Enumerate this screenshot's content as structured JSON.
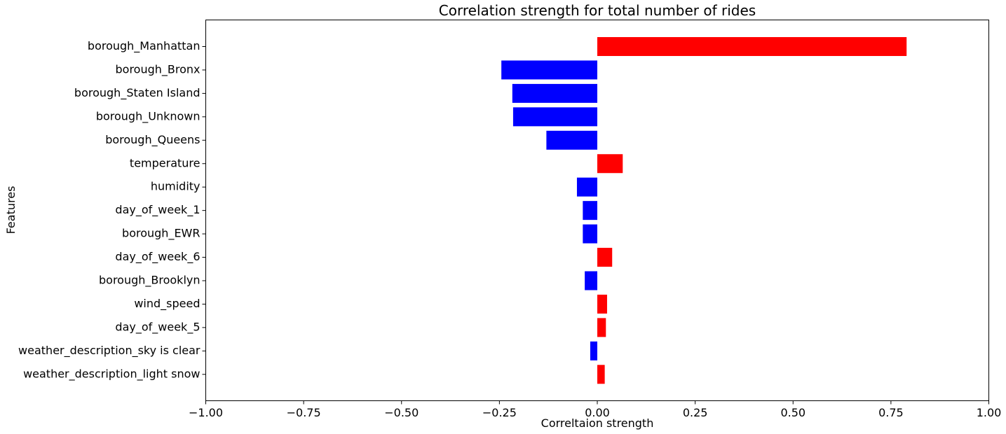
{
  "chart_data": {
    "type": "bar",
    "orientation": "horizontal",
    "title": "Correlation strength for total number of rides",
    "xlabel": "Correltaion strength",
    "ylabel": "Features",
    "xlim": [
      -1.0,
      1.0
    ],
    "xticks": [
      "-1.00",
      "-0.75",
      "-0.50",
      "-0.25",
      "0.00",
      "0.25",
      "0.50",
      "0.75",
      "1.00"
    ],
    "grid": false,
    "colors": {
      "positive": "#ff0000",
      "negative": "#0000ff"
    },
    "categories": [
      "borough_Manhattan",
      "borough_Bronx",
      "borough_Staten Island",
      "borough_Unknown",
      "borough_Queens",
      "temperature",
      "humidity",
      "day_of_week_1",
      "borough_EWR",
      "day_of_week_6",
      "borough_Brooklyn",
      "wind_speed",
      "day_of_week_5",
      "weather_description_sky is clear",
      "weather_description_light snow"
    ],
    "values": [
      0.79,
      -0.245,
      -0.217,
      -0.215,
      -0.13,
      0.065,
      -0.052,
      -0.037,
      -0.037,
      0.038,
      -0.032,
      0.025,
      0.022,
      -0.018,
      0.019
    ]
  }
}
